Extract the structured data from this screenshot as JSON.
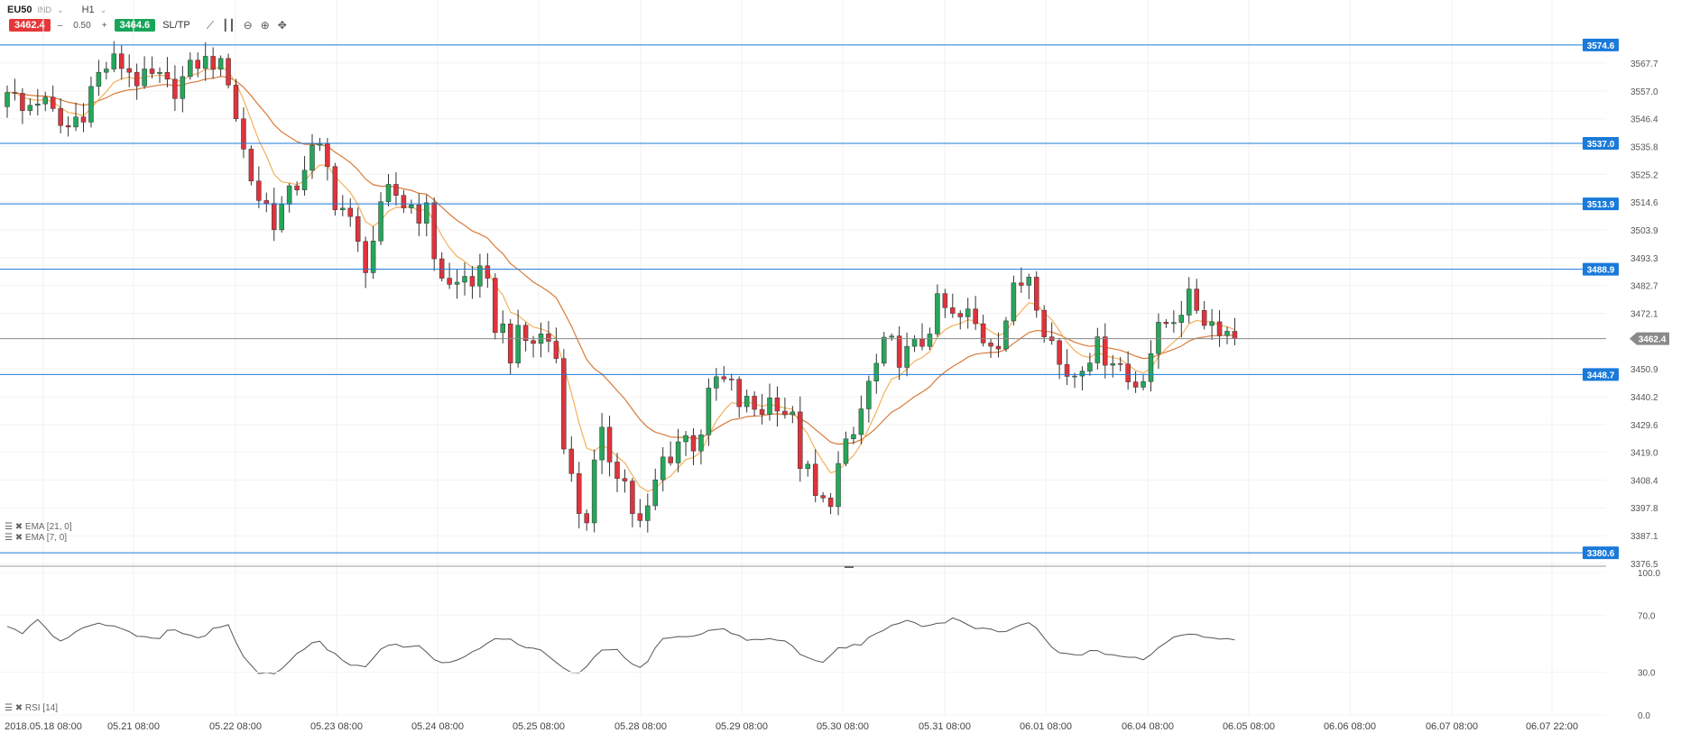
{
  "header": {
    "symbol": "EU50",
    "market": "IND",
    "timeframe": "H1",
    "sell_price": "3462.4",
    "spread": "0.50",
    "buy_price": "3464.6",
    "sltp_label": "SL/TP",
    "minus": "–",
    "plus": "+"
  },
  "legend": {
    "ema21": "EMA [21, 0]",
    "ema7": "EMA [7, 0]",
    "rsi": "RSI [14]"
  },
  "colors": {
    "up": "#26a65b",
    "down": "#e0333c",
    "ema7": "#f3b15a",
    "ema21": "#d97a3a",
    "hline": "#1a7ad9",
    "rsi": "#555555"
  },
  "chart_data": [
    {
      "type": "candlestick",
      "title": "",
      "ylim": [
        3376.5,
        3578.0
      ],
      "y_ticks": [
        "3567.7",
        "3557.0",
        "3546.4",
        "3535.8",
        "3525.2",
        "3514.6",
        "3503.9",
        "3493.3",
        "3482.7",
        "3472.1",
        "3450.9",
        "3440.2",
        "3429.6",
        "3419.0",
        "3408.4",
        "3397.8",
        "3387.1",
        "3376.5"
      ],
      "x_labels": [
        "2018.05.18 08:00",
        "05.21 08:00",
        "05.22 08:00",
        "05.23 08:00",
        "05.24 08:00",
        "05.25 08:00",
        "05.28 08:00",
        "05.29 08:00",
        "05.30 08:00",
        "05.31 08:00",
        "06.01 08:00",
        "06.04 08:00",
        "06.05 08:00",
        "06.06 08:00",
        "06.07 08:00",
        "06.07 22:00"
      ],
      "horizontal_lines": [
        {
          "value": 3574.6,
          "label": "3574.6"
        },
        {
          "value": 3537.0,
          "label": "3537.0"
        },
        {
          "value": 3513.9,
          "label": "3513.9"
        },
        {
          "value": 3488.9,
          "label": "3488.9"
        },
        {
          "value": 3448.7,
          "label": "3448.7"
        },
        {
          "value": 3380.6,
          "label": "3380.6"
        }
      ],
      "current_price": {
        "value": 3462.4,
        "label": "3462.4"
      },
      "waypoints": [
        [
          3558,
          3560
        ],
        [
          3545,
          3552
        ],
        [
          3553,
          3557
        ],
        [
          3541,
          3552
        ],
        [
          3538,
          3546
        ],
        [
          3546,
          3553
        ],
        [
          3558,
          3565
        ],
        [
          3567,
          3570
        ],
        [
          3565,
          3568
        ],
        [
          3558,
          3562
        ],
        [
          3560,
          3564
        ],
        [
          3556,
          3559
        ],
        [
          3558,
          3565
        ],
        [
          3568,
          3569
        ],
        [
          3567,
          3569
        ],
        [
          3560,
          3565
        ],
        [
          3526,
          3540
        ],
        [
          3513,
          3520
        ],
        [
          3505,
          3515
        ],
        [
          3509,
          3517
        ],
        [
          3525,
          3535
        ],
        [
          3531,
          3537
        ],
        [
          3515,
          3528
        ],
        [
          3504,
          3512
        ],
        [
          3486,
          3496
        ],
        [
          3500,
          3508
        ],
        [
          3515,
          3523
        ],
        [
          3509,
          3518
        ],
        [
          3508,
          3520
        ],
        [
          3488,
          3500
        ],
        [
          3473,
          3486
        ],
        [
          3483,
          3490
        ],
        [
          3480,
          3488
        ],
        [
          3465,
          3478
        ],
        [
          3455,
          3462
        ],
        [
          3455,
          3467
        ],
        [
          3459,
          3467
        ],
        [
          3458,
          3465
        ],
        [
          3403,
          3415
        ],
        [
          3387,
          3400
        ],
        [
          3405,
          3425
        ],
        [
          3415,
          3430
        ],
        [
          3395,
          3410
        ],
        [
          3380,
          3392
        ],
        [
          3401,
          3419
        ],
        [
          3418,
          3430
        ],
        [
          3415,
          3432
        ],
        [
          3425,
          3435
        ],
        [
          3445,
          3450
        ],
        [
          3438,
          3446
        ],
        [
          3430,
          3440
        ],
        [
          3432,
          3442
        ],
        [
          3438,
          3442
        ],
        [
          3428,
          3435
        ],
        [
          3403,
          3415
        ],
        [
          3390,
          3400
        ],
        [
          3405,
          3415
        ],
        [
          3415,
          3425
        ],
        [
          3433,
          3447
        ],
        [
          3448,
          3460
        ],
        [
          3455,
          3462
        ],
        [
          3452,
          3458
        ],
        [
          3460,
          3465
        ],
        [
          3475,
          3478
        ],
        [
          3465,
          3472
        ],
        [
          3467,
          3474
        ],
        [
          3460,
          3466
        ],
        [
          3460,
          3468
        ],
        [
          3472,
          3482
        ],
        [
          3488,
          3490
        ],
        [
          3468,
          3480
        ],
        [
          3448,
          3458
        ],
        [
          3446,
          3450
        ],
        [
          3455,
          3462
        ],
        [
          3455,
          3460
        ],
        [
          3453,
          3458
        ],
        [
          3437,
          3450
        ],
        [
          3450,
          3458
        ],
        [
          3465,
          3468
        ],
        [
          3470,
          3474
        ],
        [
          3477,
          3479
        ],
        [
          3468,
          3472
        ],
        [
          3466,
          3468
        ],
        [
          3462,
          3464
        ]
      ],
      "series": [
        {
          "name": "EMA [7, 0]"
        },
        {
          "name": "EMA [21, 0]"
        }
      ]
    },
    {
      "type": "line",
      "title": "",
      "ylim": [
        0,
        100
      ],
      "y_ticks": [
        "100.0",
        "70.0",
        "30.0",
        "0.0"
      ],
      "rsi_waypoints": [
        62,
        56,
        68,
        55,
        52,
        60,
        66,
        63,
        58,
        55,
        52,
        61,
        58,
        54,
        60,
        62,
        40,
        30,
        28,
        38,
        47,
        52,
        43,
        37,
        32,
        44,
        50,
        47,
        48,
        38,
        37,
        42,
        46,
        55,
        52,
        47,
        45,
        38,
        28,
        31,
        44,
        48,
        38,
        31,
        51,
        56,
        55,
        58,
        60,
        58,
        52,
        53,
        53,
        50,
        40,
        35,
        46,
        48,
        51,
        60,
        62,
        66,
        63,
        64,
        68,
        62,
        60,
        58,
        60,
        66,
        55,
        43,
        42,
        44,
        44,
        42,
        40,
        38,
        50,
        55,
        58,
        55,
        54,
        54
      ]
    }
  ]
}
